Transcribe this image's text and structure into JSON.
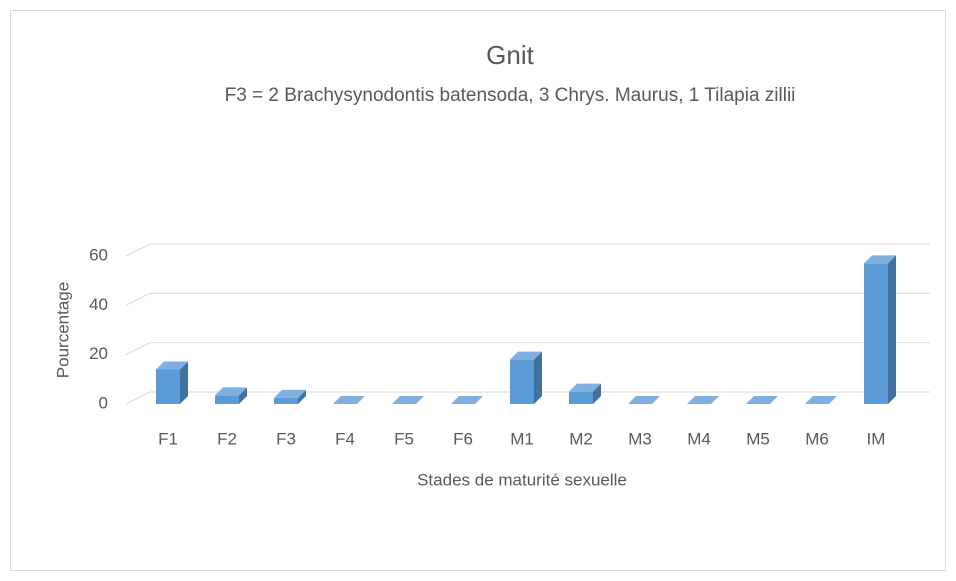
{
  "chart_data": {
    "type": "bar3d",
    "title": "Gnit",
    "subtitle": "F3 =  2 Brachysynodontis batensoda, 3 Chrys. Maurus, 1 Tilapia zillii",
    "x_label": "Stades de maturité sexuelle",
    "y_label": "Pourcentage",
    "categories": [
      "F1",
      "F2",
      "F3",
      "F4",
      "F5",
      "F6",
      "M1",
      "M2",
      "M3",
      "M4",
      "M5",
      "M6",
      "IM"
    ],
    "values": [
      14,
      3.5,
      2.5,
      0,
      0,
      0,
      18,
      5,
      0,
      0,
      0,
      0,
      57
    ],
    "color": "#5b9bd5",
    "ylim": [
      0,
      60
    ],
    "yticks": [
      0,
      20,
      40,
      60
    ],
    "grid": true
  }
}
